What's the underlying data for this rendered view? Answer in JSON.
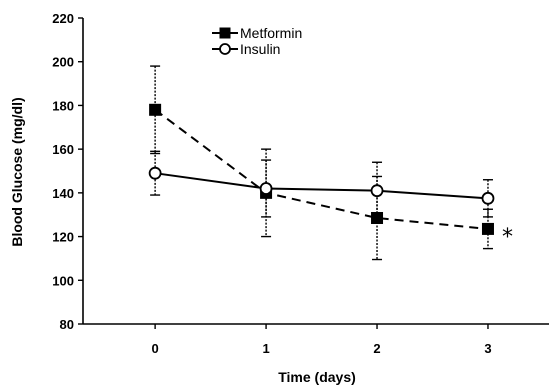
{
  "chart_data": {
    "type": "line",
    "title": "",
    "xlabel": "Time (days)",
    "ylabel": "Blood Glucose (mg/dl)",
    "x": [
      0,
      1,
      2,
      3
    ],
    "x_tick_labels": [
      "0",
      "1",
      "2",
      "3"
    ],
    "xlim": [
      -0.65,
      3.55
    ],
    "ylim": [
      80,
      220
    ],
    "y_ticks": [
      80,
      100,
      120,
      140,
      160,
      180,
      200,
      220
    ],
    "y_tick_labels": [
      "80",
      "100",
      "120",
      "140",
      "160",
      "180",
      "200",
      "220"
    ],
    "grid": false,
    "legend_position": "top-center",
    "series": [
      {
        "name": "Metformin",
        "values": [
          178,
          140,
          128.5,
          123.5
        ],
        "error": [
          20,
          20,
          19,
          9
        ],
        "marker": "filled-square",
        "line_style": "dashed",
        "color": "#000000"
      },
      {
        "name": "Insulin",
        "values": [
          149,
          142,
          141,
          137.5
        ],
        "error": [
          10,
          13,
          13,
          8.5
        ],
        "marker": "open-circle",
        "line_style": "solid",
        "color": "#000000"
      }
    ],
    "annotations": [
      {
        "text": "*",
        "x": 3,
        "y": 123.5,
        "note": "right of Metformin point at day 3"
      }
    ]
  }
}
